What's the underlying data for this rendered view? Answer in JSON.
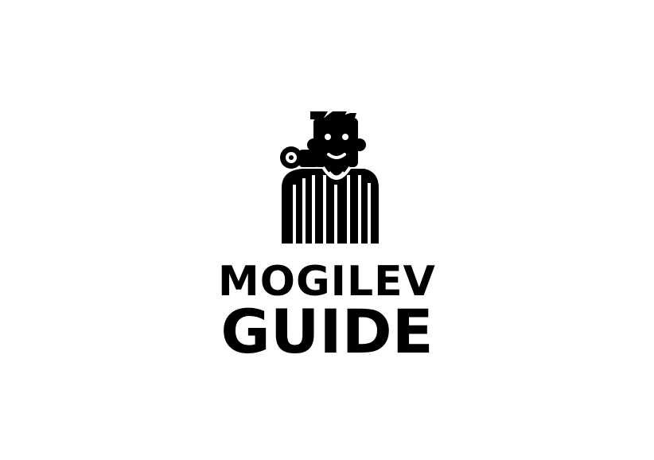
{
  "logo": {
    "mascot_icon": "guide-man-with-camera-icon",
    "wordmark_line1": "MOGILEV",
    "wordmark_line2": "GUIDE",
    "foreground_color": "#000000",
    "background_color": "#ffffff"
  }
}
